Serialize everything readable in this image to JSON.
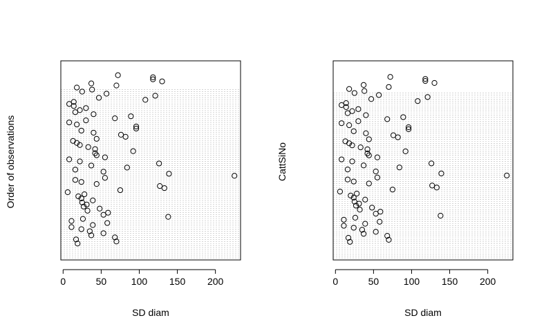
{
  "chart_data": [
    {
      "type": "scatter",
      "panel": "left",
      "xlabel": "SD diam",
      "ylabel": "Order of observations",
      "xlim": [
        -3,
        233
      ],
      "xticks": [
        0,
        50,
        100,
        150,
        200
      ],
      "ylim": [
        0,
        97
      ],
      "grid": true,
      "x": [
        72,
        118,
        118,
        130,
        37,
        70,
        18,
        38,
        25,
        57,
        121,
        47,
        108,
        14,
        8,
        14,
        30,
        22,
        16,
        40,
        89,
        68,
        30,
        8,
        18,
        96,
        96,
        24,
        40,
        76,
        82,
        44,
        13,
        18,
        22,
        33,
        42,
        92,
        42,
        44,
        55,
        8,
        22,
        126,
        37,
        84,
        16,
        53,
        139,
        225,
        55,
        16,
        24,
        44,
        127,
        133,
        75,
        6,
        28,
        20,
        24,
        39,
        25,
        31,
        27,
        48,
        32,
        59,
        53,
        138,
        26,
        11,
        58,
        39,
        11,
        24,
        35,
        53,
        37,
        68,
        17,
        70,
        19
      ]
    },
    {
      "type": "scatter",
      "panel": "right",
      "xlabel": "SD diam",
      "ylabel": "CattSiNo",
      "xlim": [
        -3,
        233
      ],
      "xticks": [
        0,
        50,
        100,
        150,
        200
      ],
      "ylim": [
        0,
        99
      ],
      "grid": true,
      "x": [
        72,
        118,
        118,
        130,
        37,
        70,
        18,
        38,
        25,
        57,
        121,
        47,
        108,
        14,
        8,
        14,
        30,
        22,
        16,
        40,
        89,
        68,
        30,
        8,
        18,
        96,
        96,
        24,
        40,
        76,
        82,
        44,
        13,
        18,
        22,
        33,
        42,
        92,
        42,
        44,
        55,
        8,
        22,
        126,
        37,
        84,
        16,
        53,
        139,
        225,
        55,
        16,
        24,
        44,
        127,
        133,
        75,
        6,
        28,
        20,
        24,
        39,
        25,
        31,
        27,
        48,
        32,
        59,
        53,
        138,
        26,
        11,
        58,
        39,
        11,
        24,
        35,
        53,
        37,
        68,
        17,
        70,
        19
      ]
    }
  ]
}
